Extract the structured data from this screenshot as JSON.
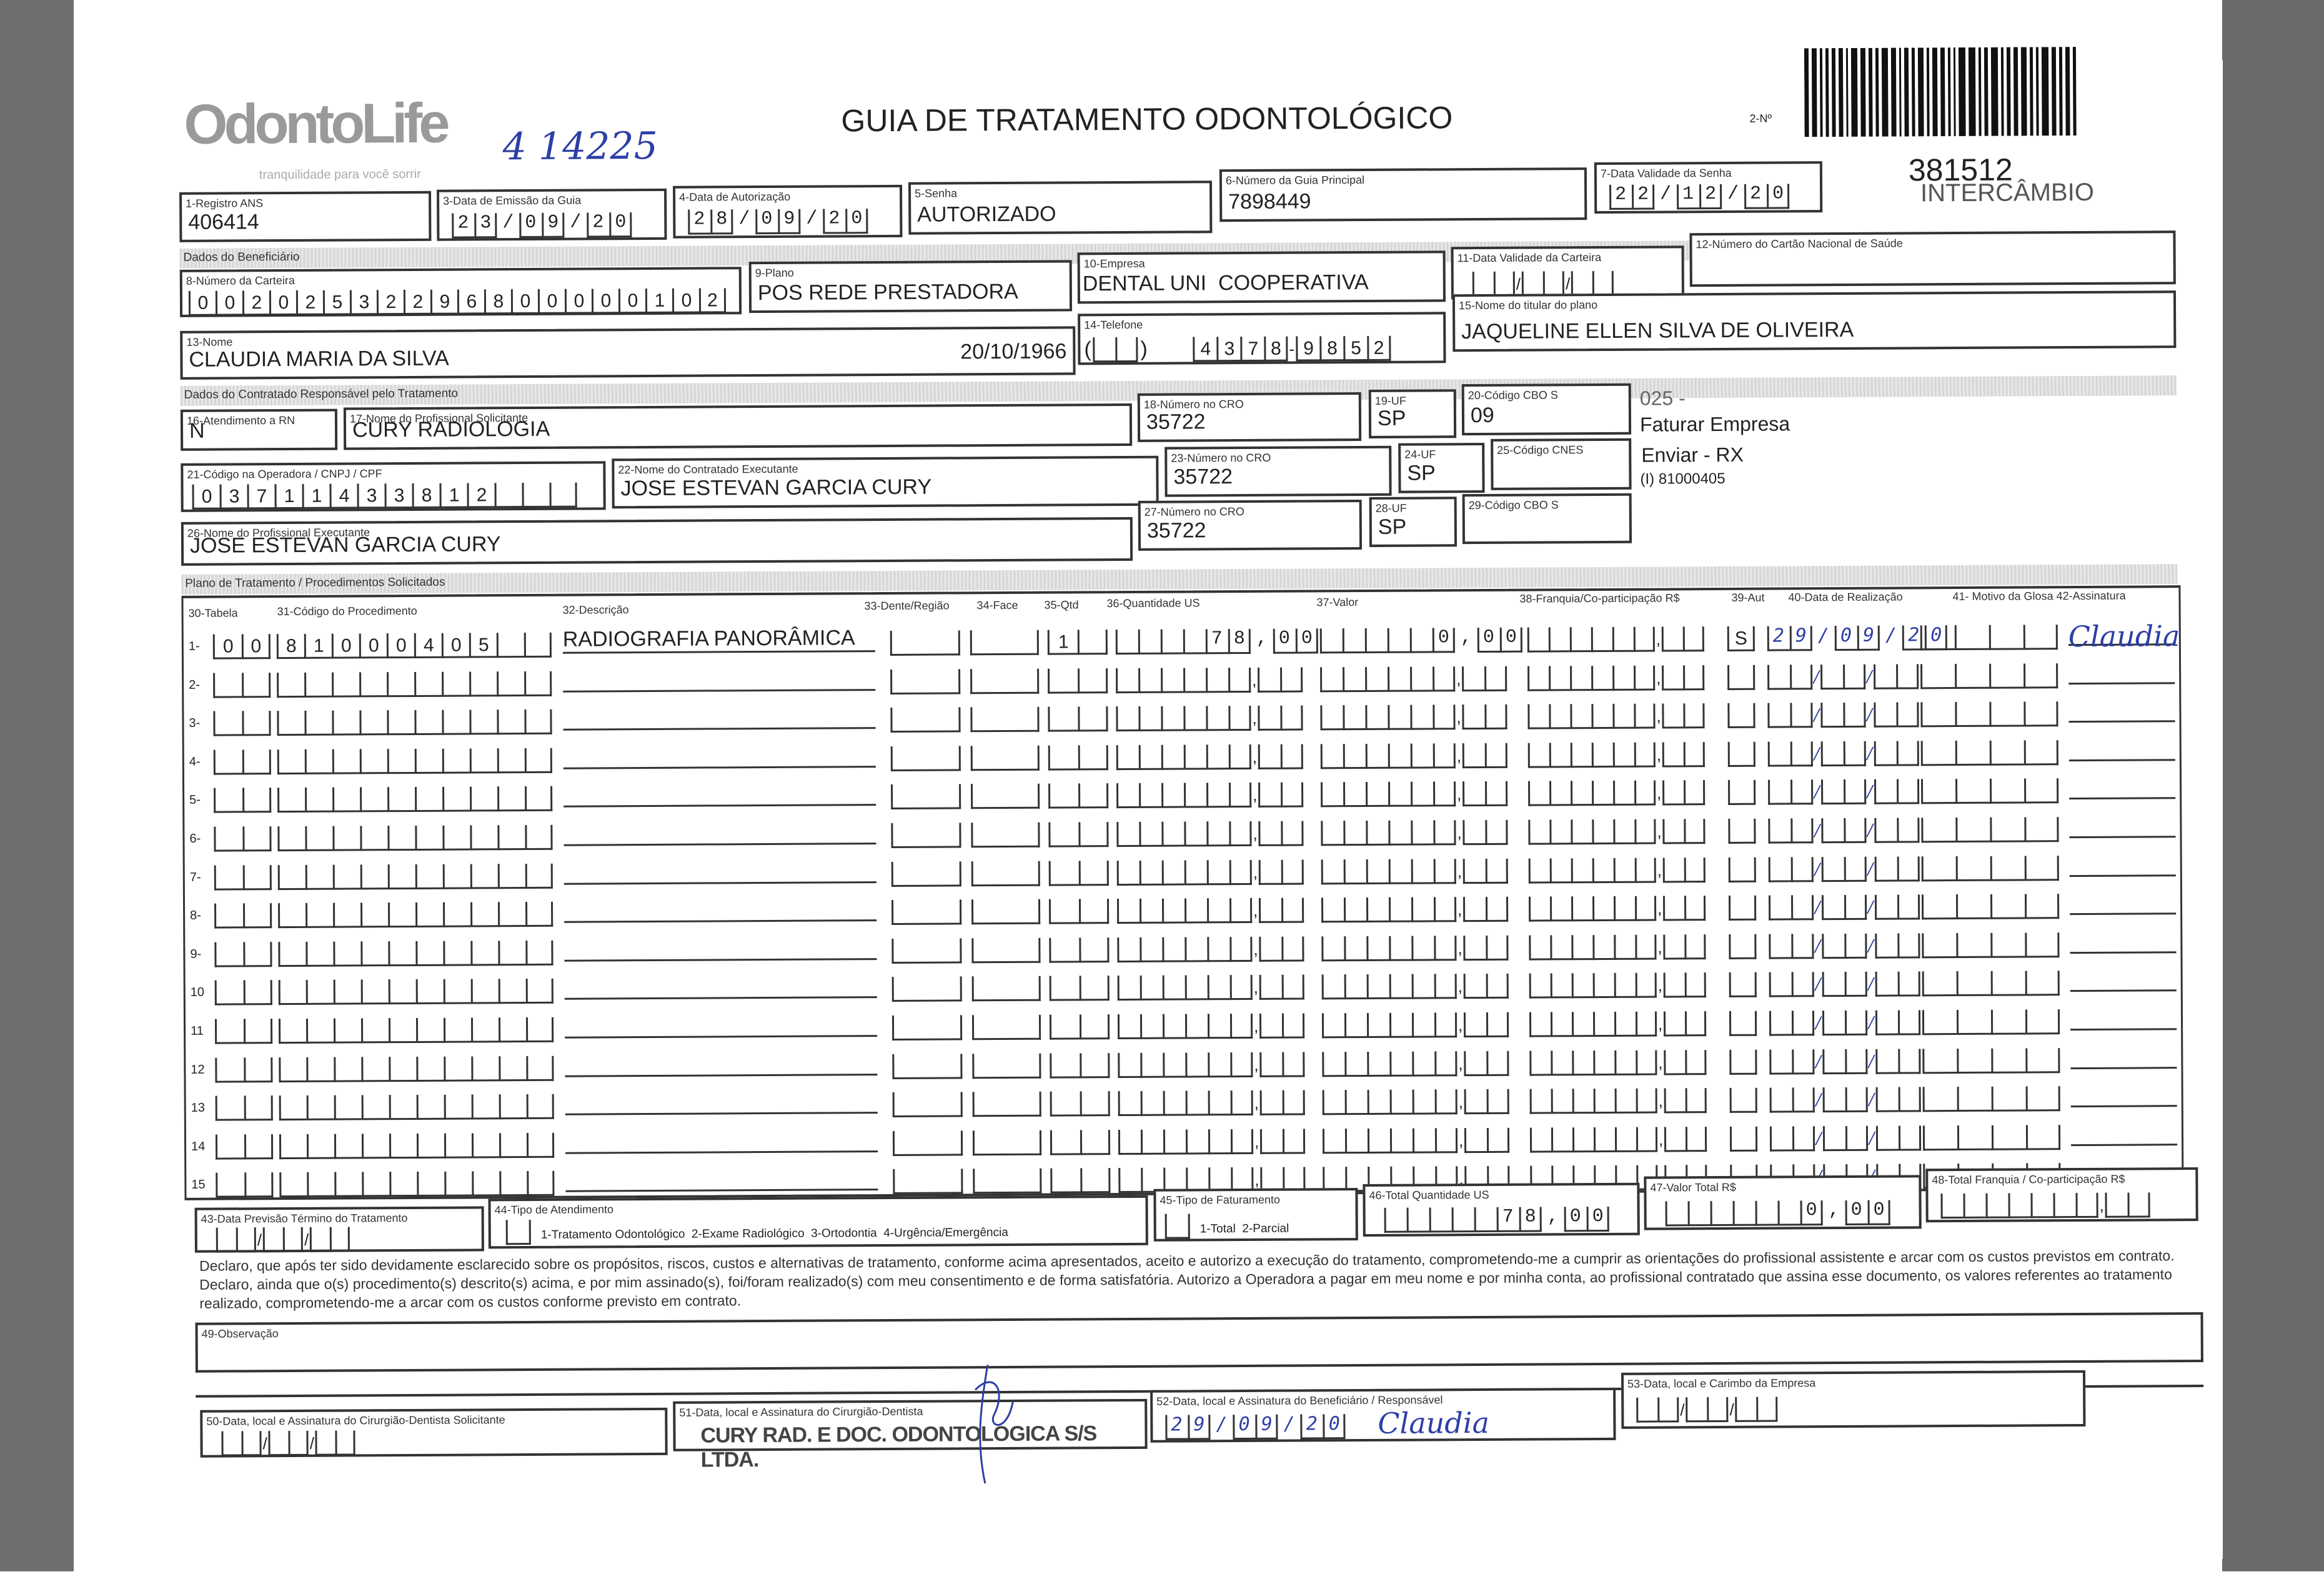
{
  "header": {
    "logo": "OdontoLife",
    "logo_tagline": "tranquilidade para você sorrir",
    "handwritten_note": "4 14225",
    "title": "GUIA DE TRATAMENTO ODONTOLÓGICO",
    "number_label": "2-Nº",
    "code": "381512",
    "exchange": "INTERCÂMBIO"
  },
  "guide": {
    "registro_ans": {
      "label": "1-Registro ANS",
      "value": "406414"
    },
    "data_emissao": {
      "label": "3-Data de Emissão da Guia",
      "value": "23/09/20"
    },
    "data_autorizacao": {
      "label": "4-Data de Autorização",
      "value": "28/09/20"
    },
    "senha": {
      "label": "5-Senha",
      "value": "AUTORIZADO"
    },
    "guia_principal": {
      "label": "6-Número da Guia Principal",
      "value": "7898449"
    },
    "validade_senha": {
      "label": "7-Data Validade da Senha",
      "value": "22/12/20"
    }
  },
  "beneficiario": {
    "section": "Dados do Beneficiário",
    "carteira": {
      "label": "8-Número da Carteira",
      "value": "00202532296800000102"
    },
    "plano": {
      "label": "9-Plano",
      "value": "POS REDE PRESTADORA"
    },
    "empresa": {
      "label": "10-Empresa",
      "value": "DENTAL UNI  COOPERATIVA"
    },
    "validade_carteira": {
      "label": "11-Data Validade da Carteira",
      "value": ""
    },
    "cns": {
      "label": "12-Número do Cartão Nacional de Saúde",
      "value": ""
    },
    "nome": {
      "label": "13-Nome",
      "value": "CLAUDIA MARIA DA SILVA",
      "birth": "20/10/1966"
    },
    "telefone": {
      "label": "14-Telefone",
      "value": "43789852"
    },
    "titular": {
      "label": "15-Nome do titular do plano",
      "value": "JAQUELINE ELLEN SILVA DE OLIVEIRA"
    }
  },
  "contratado": {
    "section": "Dados do Contratado Responsável pelo Tratamento",
    "rn": {
      "label": "16-Atendimento a RN",
      "value": "N"
    },
    "solicitante": {
      "label": "17-Nome do Profissional Solicitante",
      "value": "CURY RADIOLOGIA"
    },
    "cro18": {
      "label": "18-Número no CRO",
      "value": "35722"
    },
    "uf19": {
      "label": "19-UF",
      "value": "SP"
    },
    "cbo20": {
      "label": "20-Código CBO S",
      "value": "09"
    },
    "cnpj": {
      "label": "21-Código na Operadora / CNPJ / CPF",
      "value": "03711433812"
    },
    "executante": {
      "label": "22-Nome do Contratado Executante",
      "value": "JOSE ESTEVAN GARCIA CURY"
    },
    "cro23": {
      "label": "23-Número no CRO",
      "value": "35722"
    },
    "uf24": {
      "label": "24-UF",
      "value": "SP"
    },
    "cnes": {
      "label": "25-Código CNES",
      "value": ""
    },
    "prof_exec": {
      "label": "26-Nome do Profissional Executante",
      "value": "JOSE ESTEVAN GARCIA CURY"
    },
    "cro27": {
      "label": "27-Número no CRO",
      "value": "35722"
    },
    "uf28": {
      "label": "28-UF",
      "value": "SP"
    },
    "cbo29": {
      "label": "29-Código CBO S",
      "value": ""
    },
    "notes": [
      "025 -",
      "Faturar Empresa",
      "Enviar - RX",
      "(I) 81000405"
    ]
  },
  "plano": {
    "section": "Plano de Tratamento / Procedimentos Solicitados",
    "columns": [
      "30-Tabela",
      "31-Código do Procedimento",
      "32-Descrição",
      "33-Dente/Região",
      "34-Face",
      "35-Qtd",
      "36-Quantidade US",
      "37-Valor",
      "38-Franquia/Co-participação R$",
      "39-Aut",
      "40-Data de Realização",
      "41- Motivo da Glosa 42-Assinatura"
    ],
    "rows": [
      {
        "num": "1-",
        "tabela": "00",
        "codigo": "81000405",
        "descricao": "RADIOGRAFIA PANORÂMICA",
        "dente": "",
        "face": "",
        "qtd": "1",
        "quant_us": "78,00",
        "valor": "0,00",
        "franquia": "",
        "aut": "S",
        "data": "29/09/20",
        "glosa": "",
        "assinatura": "Claudia"
      },
      {
        "num": "2-"
      },
      {
        "num": "3-"
      },
      {
        "num": "4-"
      },
      {
        "num": "5-"
      },
      {
        "num": "6-"
      },
      {
        "num": "7-"
      },
      {
        "num": "8-"
      },
      {
        "num": "9-"
      },
      {
        "num": "10"
      },
      {
        "num": "11"
      },
      {
        "num": "12"
      },
      {
        "num": "13"
      },
      {
        "num": "14"
      },
      {
        "num": "15"
      }
    ]
  },
  "totais": {
    "previsao": {
      "label": "43-Data Previsão Término do Tratamento",
      "value": ""
    },
    "tipo_atendimento": {
      "label": "44-Tipo de Atendimento",
      "options": "1-Tratamento Odontológico  2-Exame Radiológico  3-Ortodontia  4-Urgência/Emergência",
      "value": ""
    },
    "tipo_faturamento": {
      "label": "45-Tipo de Faturamento",
      "options": "1-Total  2-Parcial",
      "value": ""
    },
    "total_us": {
      "label": "46-Total Quantidade US",
      "value": "78,00"
    },
    "valor_total": {
      "label": "47-Valor Total R$",
      "value": "0,00"
    },
    "total_franquia": {
      "label": "48-Total Franquia / Co-participação R$",
      "value": ""
    }
  },
  "declaracao": "Declaro, que após ter sido devidamente esclarecido sobre os propósitos, riscos, custos e alternativas de tratamento, conforme acima apresentados, aceito e autorizo a execução do tratamento, comprometendo-me a cumprir as orientações do profissional assistente e arcar com os custos previstos em contrato. Declaro, ainda que o(s) procedimento(s) descrito(s) acima, e por mim assinado(s), foi/foram realizado(s) com meu consentimento e de forma satisfatória. Autorizo a Operadora a pagar em meu nome e por minha conta, ao profissional contratado que assina esse documento, os valores referentes ao tratamento realizado, comprometendo-me a arcar com os custos conforme previsto em contrato.",
  "observacao": {
    "label": "49-Observação",
    "value": ""
  },
  "assinaturas": {
    "b50": {
      "label": "50-Data, local e Assinatura do Cirurgião-Dentista Solicitante",
      "value": ""
    },
    "b51": {
      "label": "51-Data, local e Assinatura do Cirurgião-Dentista",
      "stamp": "CURY RAD. E DOC. ODONTOLOGICA S/S LTDA."
    },
    "b52": {
      "label": "52-Data, local e Assinatura do Beneficiário / Responsável",
      "date": "29/09/20",
      "signature": "Claudia"
    },
    "b53": {
      "label": "53-Data, local e Carimbo da Empresa",
      "value": ""
    }
  }
}
